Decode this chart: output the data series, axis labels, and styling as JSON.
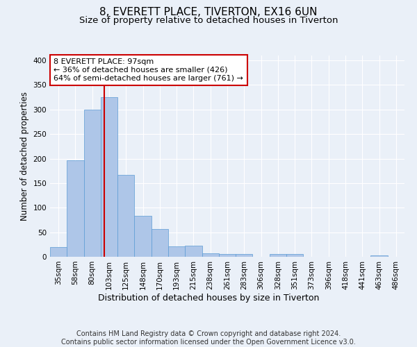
{
  "title1": "8, EVERETT PLACE, TIVERTON, EX16 6UN",
  "title2": "Size of property relative to detached houses in Tiverton",
  "xlabel": "Distribution of detached houses by size in Tiverton",
  "ylabel": "Number of detached properties",
  "categories": [
    "35sqm",
    "58sqm",
    "80sqm",
    "103sqm",
    "125sqm",
    "148sqm",
    "170sqm",
    "193sqm",
    "215sqm",
    "238sqm",
    "261sqm",
    "283sqm",
    "306sqm",
    "328sqm",
    "351sqm",
    "373sqm",
    "396sqm",
    "418sqm",
    "441sqm",
    "463sqm",
    "486sqm"
  ],
  "values": [
    20,
    197,
    300,
    325,
    167,
    83,
    56,
    21,
    23,
    7,
    6,
    6,
    0,
    5,
    5,
    0,
    0,
    0,
    0,
    3,
    0
  ],
  "bar_color": "#aec6e8",
  "bar_edge_color": "#5b9bd5",
  "vline_color": "#cc0000",
  "vline_pos": 2.72,
  "annotation_lines": [
    "8 EVERETT PLACE: 97sqm",
    "← 36% of detached houses are smaller (426)",
    "64% of semi-detached houses are larger (761) →"
  ],
  "annotation_box_facecolor": "#ffffff",
  "annotation_box_edgecolor": "#cc0000",
  "footer": "Contains HM Land Registry data © Crown copyright and database right 2024.\nContains public sector information licensed under the Open Government Licence v3.0.",
  "ylim": [
    0,
    410
  ],
  "yticks": [
    0,
    50,
    100,
    150,
    200,
    250,
    300,
    350,
    400
  ],
  "bg_color": "#eaf0f8",
  "plot_bg_color": "#eaf0f8",
  "grid_color": "#ffffff",
  "title1_fontsize": 11,
  "title2_fontsize": 9.5,
  "xlabel_fontsize": 9,
  "ylabel_fontsize": 8.5,
  "tick_fontsize": 7.5,
  "annotation_fontsize": 8,
  "footer_fontsize": 7
}
